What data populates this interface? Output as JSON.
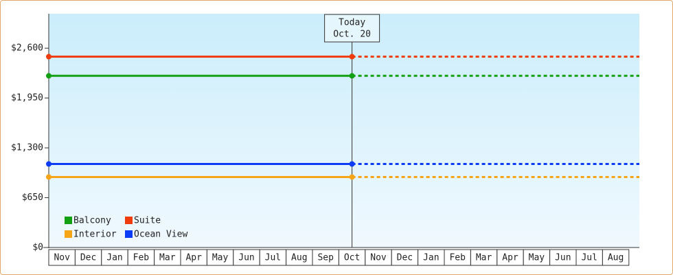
{
  "chart_data": {
    "type": "line",
    "categories": [
      "Nov",
      "Dec",
      "Jan",
      "Feb",
      "Mar",
      "Apr",
      "May",
      "Jun",
      "Jul",
      "Aug",
      "Sep",
      "Oct",
      "Nov",
      "Dec",
      "Jan",
      "Feb",
      "Mar",
      "Apr",
      "May",
      "Jun",
      "Jul",
      "Aug"
    ],
    "series": [
      {
        "name": "Balcony",
        "color": "#13a013",
        "value": 2240
      },
      {
        "name": "Suite",
        "color": "#f03c0c",
        "value": 2490
      },
      {
        "name": "Interior",
        "color": "#f5a516",
        "value": 920
      },
      {
        "name": "Ocean View",
        "color": "#0c3cf5",
        "value": 1090
      }
    ],
    "annotation": {
      "title": "Today",
      "date": "Oct. 20"
    },
    "ylim": [
      0,
      3050
    ],
    "yticks": [
      {
        "value": 0,
        "label": "$0"
      },
      {
        "value": 650,
        "label": "$650"
      },
      {
        "value": 1300,
        "label": "$1,300"
      },
      {
        "value": 1950,
        "label": "$1,950"
      },
      {
        "value": 2600,
        "label": "$2,600"
      }
    ]
  }
}
